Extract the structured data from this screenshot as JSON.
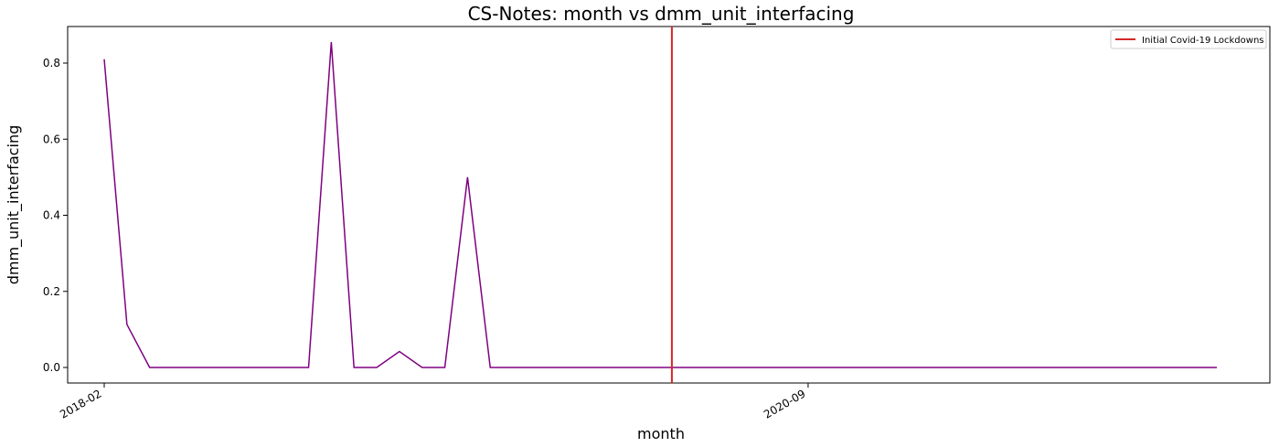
{
  "chart_data": {
    "type": "line",
    "title": "CS-Notes: month vs dmm_unit_interfacing",
    "xlabel": "month",
    "ylabel": "dmm_unit_interfacing",
    "x": [
      "2018-02",
      "2018-03",
      "2018-04",
      "2018-05",
      "2018-06",
      "2018-07",
      "2018-08",
      "2018-09",
      "2018-10",
      "2018-11",
      "2018-12",
      "2019-01",
      "2019-02",
      "2019-03",
      "2019-04",
      "2019-05",
      "2019-06",
      "2019-07",
      "2019-08",
      "2019-09",
      "2019-10",
      "2019-11",
      "2019-12",
      "2020-01",
      "2020-02",
      "2020-03",
      "2020-04",
      "2020-05",
      "2020-06",
      "2020-07",
      "2020-08",
      "2020-09",
      "2020-10",
      "2020-11",
      "2020-12",
      "2021-01",
      "2021-02",
      "2021-03",
      "2021-04",
      "2021-05",
      "2021-06",
      "2021-07",
      "2021-08",
      "2021-09",
      "2021-10",
      "2021-11",
      "2021-12",
      "2022-01",
      "2022-02",
      "2022-03"
    ],
    "series": [
      {
        "name": "",
        "color": "#800080",
        "values": [
          0.81,
          0.113,
          0,
          0,
          0,
          0,
          0,
          0,
          0,
          0,
          0.855,
          0,
          0,
          0.042,
          0,
          0,
          0.5,
          0,
          0,
          0,
          0,
          0,
          0,
          0,
          0,
          0,
          0,
          0,
          0,
          0,
          0,
          0,
          0,
          0,
          0,
          0,
          0,
          0,
          0,
          0,
          0,
          0,
          0,
          0,
          0,
          0,
          0,
          0,
          0,
          0
        ]
      }
    ],
    "x_ticks": [
      "2018-02",
      "2020-09"
    ],
    "y_ticks": [
      0.0,
      0.2,
      0.4,
      0.6,
      0.8
    ],
    "ylim": [
      -0.04,
      0.9
    ],
    "vline": {
      "x": "2020-03",
      "label": "Initial Covid-19 Lockdowns",
      "color": "#d62728"
    },
    "grid": false,
    "legend_position": "top-right"
  }
}
